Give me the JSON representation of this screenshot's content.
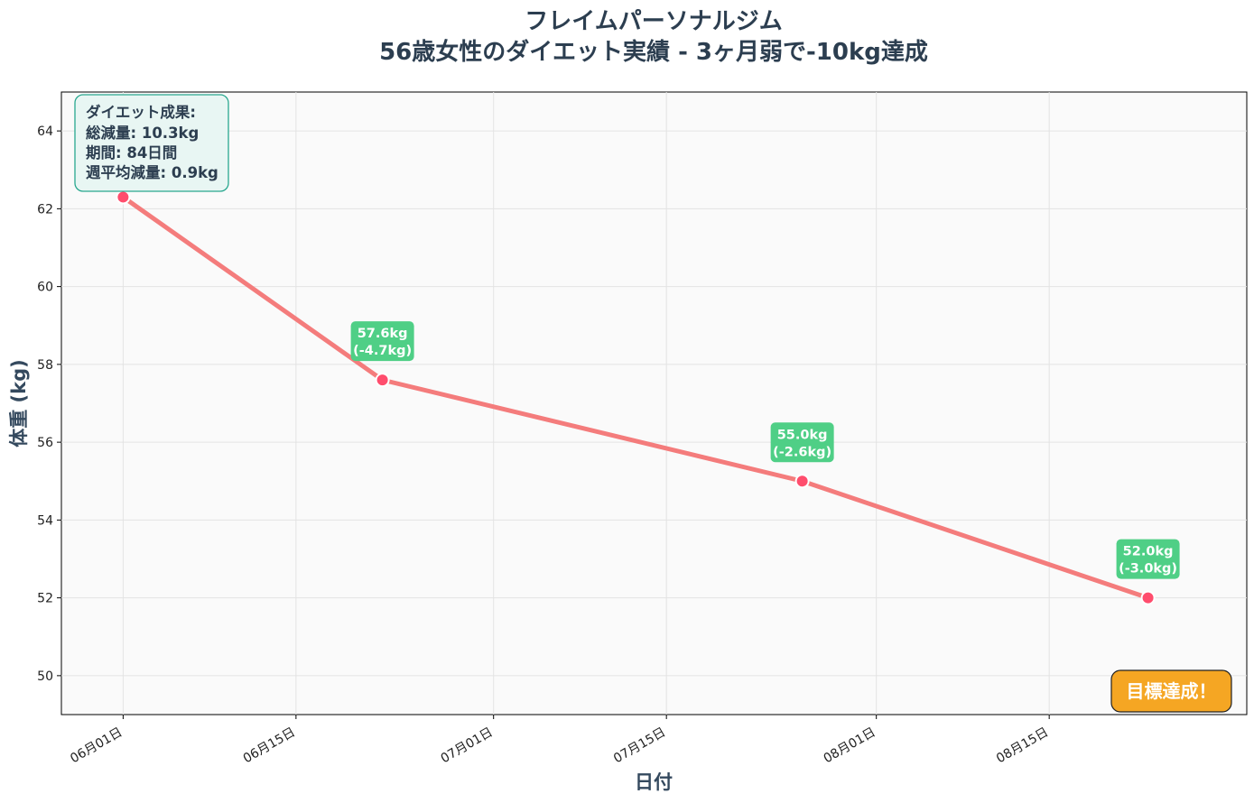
{
  "chart_data": {
    "type": "line",
    "title": "フレイムパーソナルジム",
    "subtitle": "56歳女性のダイエット実績 - 3ヶ月弱で-10kg達成",
    "xlabel": "日付",
    "ylabel": "体重 (kg)",
    "x_ticks": [
      {
        "date": "2024-06-01",
        "label": "06月01日"
      },
      {
        "date": "2024-06-15",
        "label": "06月15日"
      },
      {
        "date": "2024-07-01",
        "label": "07月01日"
      },
      {
        "date": "2024-07-15",
        "label": "07月15日"
      },
      {
        "date": "2024-08-01",
        "label": "08月01日"
      },
      {
        "date": "2024-08-15",
        "label": "08月15日"
      }
    ],
    "xlim": [
      "2024-05-27",
      "2024-08-31"
    ],
    "y_ticks": [
      50,
      52,
      54,
      56,
      58,
      60,
      62,
      64
    ],
    "ylim": [
      49,
      65
    ],
    "grid": true,
    "series": [
      {
        "values": [
          {
            "x": "2024-06-01",
            "y": 62.3
          },
          {
            "x": "2024-06-22",
            "y": 57.6
          },
          {
            "x": "2024-07-26",
            "y": 55.0
          },
          {
            "x": "2024-08-23",
            "y": 52.0
          }
        ],
        "color": "#f47c7c",
        "marker_color": "#ff4d6d"
      }
    ],
    "annotations": [
      {
        "x": "2024-06-22",
        "y": 57.6,
        "line1": "57.6kg",
        "line2": "(-4.7kg)"
      },
      {
        "x": "2024-07-26",
        "y": 55.0,
        "line1": "55.0kg",
        "line2": "(-2.6kg)"
      },
      {
        "x": "2024-08-23",
        "y": 52.0,
        "line1": "52.0kg",
        "line2": "(-3.0kg)"
      }
    ],
    "annotation_color": "#4fcf86",
    "summary": {
      "lines": [
        "ダイエット成果:",
        "総減量: 10.3kg",
        "期間: 84日間",
        "週平均減量: 0.9kg"
      ],
      "placement": "top-left",
      "border_color": "#2aa88f",
      "background": "#e8f6f3"
    },
    "badge": {
      "text": "目標達成！",
      "placement": "bottom-right",
      "color": "#f5a623"
    }
  }
}
